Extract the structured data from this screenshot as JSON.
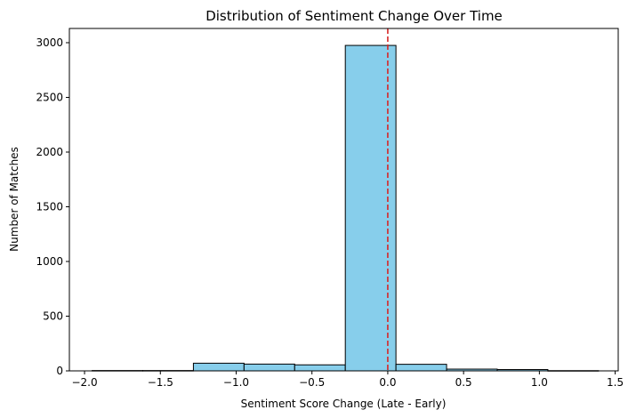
{
  "chart_data": {
    "type": "bar",
    "title": "Distribution of Sentiment Change Over Time",
    "xlabel": "Sentiment Score Change (Late - Early)",
    "ylabel": "Number of Matches",
    "xlim": [
      -2.1,
      1.52
    ],
    "ylim": [
      0,
      3130
    ],
    "xticks": [
      {
        "value": -2.0,
        "label": "−2.0"
      },
      {
        "value": -1.5,
        "label": "−1.5"
      },
      {
        "value": -1.0,
        "label": "−1.0"
      },
      {
        "value": -0.5,
        "label": "−0.5"
      },
      {
        "value": 0.0,
        "label": "0.0"
      },
      {
        "value": 0.5,
        "label": "0.5"
      },
      {
        "value": 1.0,
        "label": "1.0"
      },
      {
        "value": 1.5,
        "label": "1.5"
      }
    ],
    "yticks": [
      {
        "value": 0,
        "label": "0"
      },
      {
        "value": 500,
        "label": "500"
      },
      {
        "value": 1000,
        "label": "1000"
      },
      {
        "value": 1500,
        "label": "1500"
      },
      {
        "value": 2000,
        "label": "2000"
      },
      {
        "value": 2500,
        "label": "2500"
      },
      {
        "value": 3000,
        "label": "3000"
      }
    ],
    "bins": [
      {
        "x0": -1.95,
        "x1": -1.616,
        "count": 3
      },
      {
        "x0": -1.616,
        "x1": -1.282,
        "count": 3
      },
      {
        "x0": -1.282,
        "x1": -0.948,
        "count": 70
      },
      {
        "x0": -0.948,
        "x1": -0.614,
        "count": 62
      },
      {
        "x0": -0.614,
        "x1": -0.28,
        "count": 55
      },
      {
        "x0": -0.28,
        "x1": 0.054,
        "count": 2975
      },
      {
        "x0": 0.054,
        "x1": 0.388,
        "count": 60
      },
      {
        "x0": 0.388,
        "x1": 0.722,
        "count": 16
      },
      {
        "x0": 0.722,
        "x1": 1.056,
        "count": 12
      },
      {
        "x0": 1.056,
        "x1": 1.39,
        "count": 2
      }
    ],
    "reference_line": {
      "x": 0.0,
      "style": "dashed",
      "color": "#d62728"
    },
    "bar_color": "#87ceeb",
    "edge_color": "#000000",
    "grid": false
  }
}
